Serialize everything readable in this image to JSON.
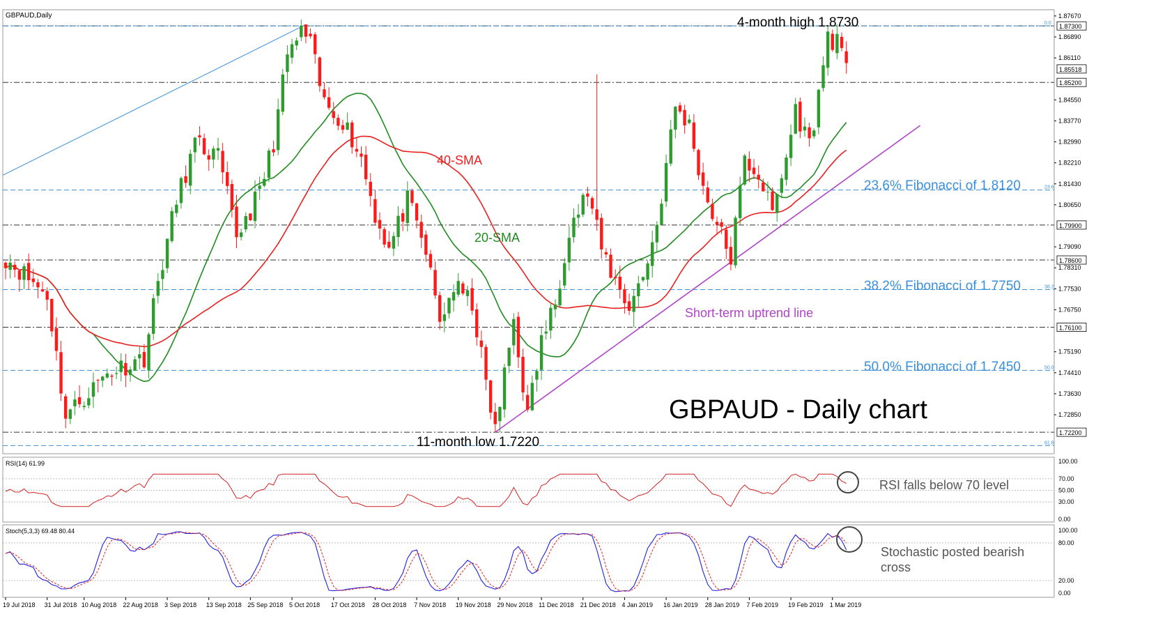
{
  "chart_data": {
    "type": "candlestick",
    "symbol_label": "GBPAUD,Daily",
    "title": "GBPAUD - Daily chart",
    "price_range": [
      1.714,
      1.879
    ],
    "price_ticks": [
      "1.87670",
      "1.86890",
      "1.86110",
      "1.84550",
      "1.83770",
      "1.82990",
      "1.82210",
      "1.81430",
      "1.80650",
      "1.79090",
      "1.78310",
      "1.77530",
      "1.76750",
      "1.75190",
      "1.74410",
      "1.73630",
      "1.72850"
    ],
    "highlighted_levels": [
      {
        "price": 1.873,
        "label": "1.87300",
        "style": "dashdot"
      },
      {
        "price": 1.8552,
        "label": "1.85518",
        "style": "solid-tag"
      },
      {
        "price": 1.852,
        "label": "1.85200",
        "style": "dashdot"
      },
      {
        "price": 1.799,
        "label": "1.79900",
        "style": "dashdot"
      },
      {
        "price": 1.786,
        "label": "1.78600",
        "style": "dashdot"
      },
      {
        "price": 1.761,
        "label": "1.76100",
        "style": "dashdot"
      },
      {
        "price": 1.722,
        "label": "1.72200",
        "style": "dashdot"
      }
    ],
    "fibonacci": [
      {
        "price": 1.873,
        "level": "0.0",
        "label": ""
      },
      {
        "price": 1.812,
        "level": "23.6",
        "label": "23.6% Fibonacci of 1.8120"
      },
      {
        "price": 1.775,
        "level": "38.2",
        "label": "38.2% Fibonacci of 1.7750"
      },
      {
        "price": 1.745,
        "level": "50.0",
        "label": "50.0% Fibonacci of 1.7450"
      },
      {
        "price": 1.717,
        "level": "61.8",
        "label": ""
      }
    ],
    "x_labels": [
      {
        "i": 0,
        "label": "19 Jul 2018"
      },
      {
        "i": 9,
        "label": "31 Jul 2018"
      },
      {
        "i": 17,
        "label": "10 Aug 2018"
      },
      {
        "i": 26,
        "label": "22 Aug 2018"
      },
      {
        "i": 35,
        "label": "3 Sep 2018"
      },
      {
        "i": 44,
        "label": "13 Sep 2018"
      },
      {
        "i": 53,
        "label": "25 Sep 2018"
      },
      {
        "i": 62,
        "label": "5 Oct 2018"
      },
      {
        "i": 71,
        "label": "17 Oct 2018"
      },
      {
        "i": 80,
        "label": "28 Oct 2018"
      },
      {
        "i": 89,
        "label": "7 Nov 2018"
      },
      {
        "i": 98,
        "label": "19 Nov 2018"
      },
      {
        "i": 107,
        "label": "29 Nov 2018"
      },
      {
        "i": 116,
        "label": "11 Dec 2018"
      },
      {
        "i": 125,
        "label": "21 Dec 2018"
      },
      {
        "i": 134,
        "label": "4 Jan 2019"
      },
      {
        "i": 143,
        "label": "16 Jan 2019"
      },
      {
        "i": 152,
        "label": "28 Jan 2019"
      },
      {
        "i": 161,
        "label": "7 Feb 2019"
      },
      {
        "i": 170,
        "label": "19 Feb 2019"
      },
      {
        "i": 179,
        "label": "1 Mar 2019"
      }
    ],
    "trend_anchors": [
      [
        0,
        1.787
      ],
      [
        9,
        1.773
      ],
      [
        13,
        1.728
      ],
      [
        22,
        1.744
      ],
      [
        30,
        1.75
      ],
      [
        33,
        1.778
      ],
      [
        37,
        1.808
      ],
      [
        41,
        1.829
      ],
      [
        46,
        1.824
      ],
      [
        50,
        1.795
      ],
      [
        55,
        1.811
      ],
      [
        58,
        1.83
      ],
      [
        61,
        1.862
      ],
      [
        65,
        1.873
      ],
      [
        69,
        1.844
      ],
      [
        73,
        1.838
      ],
      [
        77,
        1.824
      ],
      [
        80,
        1.803
      ],
      [
        83,
        1.79
      ],
      [
        87,
        1.808
      ],
      [
        91,
        1.789
      ],
      [
        94,
        1.763
      ],
      [
        97,
        1.776
      ],
      [
        101,
        1.77
      ],
      [
        104,
        1.74
      ],
      [
        106,
        1.722
      ],
      [
        110,
        1.764
      ],
      [
        113,
        1.728
      ],
      [
        116,
        1.756
      ],
      [
        119,
        1.77
      ],
      [
        122,
        1.798
      ],
      [
        126,
        1.811
      ],
      [
        129,
        1.79
      ],
      [
        132,
        1.778
      ],
      [
        135,
        1.769
      ],
      [
        138,
        1.78
      ],
      [
        141,
        1.799
      ],
      [
        145,
        1.843
      ],
      [
        148,
        1.836
      ],
      [
        151,
        1.813
      ],
      [
        154,
        1.799
      ],
      [
        157,
        1.787
      ],
      [
        160,
        1.823
      ],
      [
        163,
        1.818
      ],
      [
        166,
        1.803
      ],
      [
        169,
        1.824
      ],
      [
        171,
        1.842
      ],
      [
        174,
        1.829
      ],
      [
        176,
        1.847
      ],
      [
        178,
        1.87
      ],
      [
        180,
        1.866
      ],
      [
        182,
        1.856
      ]
    ],
    "sma_labels": {
      "sma20": "20-SMA",
      "sma40": "40-SMA"
    },
    "annotations": {
      "high": "4-month high 1.8730",
      "low": "11-month low 1.7220",
      "uptrend": "Short-term uptrend line"
    },
    "rsi": {
      "header": "RSI(14) 61.99",
      "ticks": [
        "100.00",
        "70.00",
        "50.00",
        "30.00",
        "0.00"
      ],
      "note": "RSI falls below 70 level"
    },
    "stoch": {
      "header": "Stoch(5,3,3) 69.48 80.44",
      "ticks": [
        "100.00",
        "80.00",
        "20.00",
        "0.00"
      ],
      "note_line1": "Stochastic posted bearish",
      "note_line2": "cross"
    },
    "colors": {
      "bull": "#2e9b2e",
      "bear": "#ff1a1a",
      "sma20": "#1f8a1f",
      "sma40": "#e82020",
      "fib": "#3a8fd9",
      "uptrend": "#b044c8",
      "level": "#333333",
      "rsi": "#d42020",
      "stoch_main": "#2020e0",
      "stoch_signal": "#e02020"
    }
  }
}
